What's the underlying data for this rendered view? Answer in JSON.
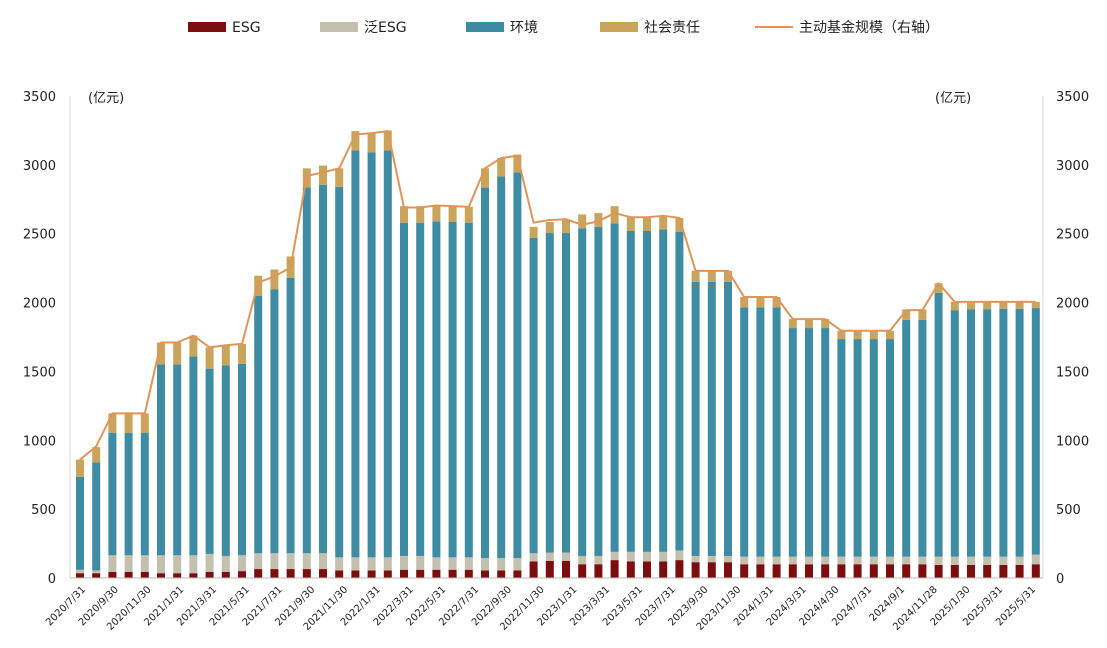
{
  "chart_data": {
    "type": "bar",
    "stacked": true,
    "left_axis": {
      "unit": "(亿元)",
      "ylim": [
        0,
        3500
      ],
      "ticks": [
        0,
        500,
        1000,
        1500,
        2000,
        2500,
        3000,
        3500
      ]
    },
    "right_axis": {
      "unit": "(亿元)",
      "ylim": [
        0,
        3500
      ],
      "ticks": [
        0,
        500,
        1000,
        1500,
        2000,
        2500,
        3000,
        3500
      ]
    },
    "legend_placement": "top",
    "grid": false,
    "x_tick_labels": [
      "2020/7/31",
      "2020/9/30",
      "2020/11/30",
      "2021/1/31",
      "2021/3/31",
      "2021/5/31",
      "2021/7/31",
      "2021/9/30",
      "2021/11/30",
      "2022/1/31",
      "2022/3/31",
      "2022/5/31",
      "2022/7/31",
      "2022/9/30",
      "2022/11/30",
      "2023/1/31",
      "2023/3/31",
      "2023/5/31",
      "2023/7/31",
      "2023/9/30",
      "2023/11/30",
      "2024/1/31",
      "2024/3/31",
      "2024/4/30",
      "2024/7/31",
      "2024/9/1",
      "2024/11/28",
      "2025/1/30",
      "2025/3/31",
      "2025/5/31"
    ],
    "series": [
      {
        "name": "ESG",
        "kind": "bar",
        "color": "#7b0e0e",
        "values": [
          35,
          35,
          45,
          45,
          45,
          35,
          35,
          35,
          45,
          45,
          50,
          65,
          65,
          65,
          65,
          65,
          55,
          55,
          55,
          55,
          60,
          60,
          60,
          60,
          60,
          55,
          55,
          55,
          120,
          125,
          125,
          100,
          100,
          130,
          120,
          120,
          120,
          130,
          115,
          115,
          115,
          100,
          100,
          100,
          100,
          100,
          100,
          100,
          100,
          100,
          100,
          100,
          100,
          95,
          95,
          95,
          95,
          95,
          95,
          100
        ]
      },
      {
        "name": "泛ESG",
        "kind": "bar",
        "color": "#c3c0b0",
        "values": [
          25,
          20,
          120,
          120,
          120,
          130,
          130,
          130,
          130,
          115,
          115,
          115,
          115,
          115,
          115,
          115,
          95,
          95,
          95,
          95,
          100,
          100,
          90,
          90,
          90,
          90,
          90,
          90,
          60,
          60,
          60,
          60,
          60,
          60,
          70,
          70,
          70,
          70,
          45,
          45,
          45,
          55,
          55,
          55,
          55,
          55,
          55,
          55,
          55,
          55,
          55,
          55,
          55,
          60,
          60,
          60,
          60,
          60,
          60,
          70
        ]
      },
      {
        "name": "环境",
        "kind": "bar",
        "color": "#3e8ca3",
        "values": [
          675,
          785,
          890,
          890,
          890,
          1385,
          1385,
          1445,
          1345,
          1385,
          1390,
          1870,
          1915,
          2000,
          2655,
          2675,
          2690,
          2955,
          2940,
          2955,
          2420,
          2420,
          2440,
          2435,
          2430,
          2690,
          2770,
          2800,
          2290,
          2320,
          2320,
          2380,
          2390,
          2385,
          2330,
          2330,
          2340,
          2315,
          1990,
          1990,
          1990,
          1810,
          1810,
          1810,
          1660,
          1660,
          1660,
          1580,
          1580,
          1580,
          1580,
          1720,
          1720,
          1915,
          1790,
          1795,
          1795,
          1800,
          1800,
          1790
        ]
      },
      {
        "name": "社会责任",
        "kind": "bar",
        "color": "#c9a45a",
        "values": [
          125,
          110,
          140,
          140,
          140,
          160,
          160,
          150,
          155,
          145,
          145,
          145,
          145,
          155,
          140,
          140,
          135,
          140,
          140,
          145,
          120,
          120,
          115,
          115,
          115,
          140,
          135,
          130,
          80,
          80,
          100,
          100,
          100,
          125,
          100,
          100,
          100,
          100,
          80,
          80,
          80,
          75,
          75,
          75,
          65,
          65,
          65,
          60,
          60,
          60,
          60,
          75,
          75,
          70,
          60,
          55,
          55,
          50,
          50,
          45
        ]
      },
      {
        "name": "主动基金规模（右轴）",
        "kind": "line",
        "axis": "right",
        "color": "#e0945a",
        "values": [
          860,
          955,
          1195,
          1195,
          1195,
          1710,
          1710,
          1760,
          1675,
          1690,
          1700,
          2145,
          2190,
          2255,
          2920,
          2945,
          2975,
          3220,
          3230,
          3245,
          2690,
          2690,
          2705,
          2700,
          2695,
          2975,
          3050,
          3065,
          2580,
          2600,
          2605,
          2565,
          2590,
          2650,
          2620,
          2620,
          2630,
          2615,
          2230,
          2230,
          2230,
          2040,
          2040,
          2040,
          1880,
          1880,
          1880,
          1795,
          1795,
          1795,
          1795,
          1945,
          1945,
          2140,
          2005,
          2005,
          2005,
          2005,
          2005,
          2005
        ]
      }
    ]
  }
}
